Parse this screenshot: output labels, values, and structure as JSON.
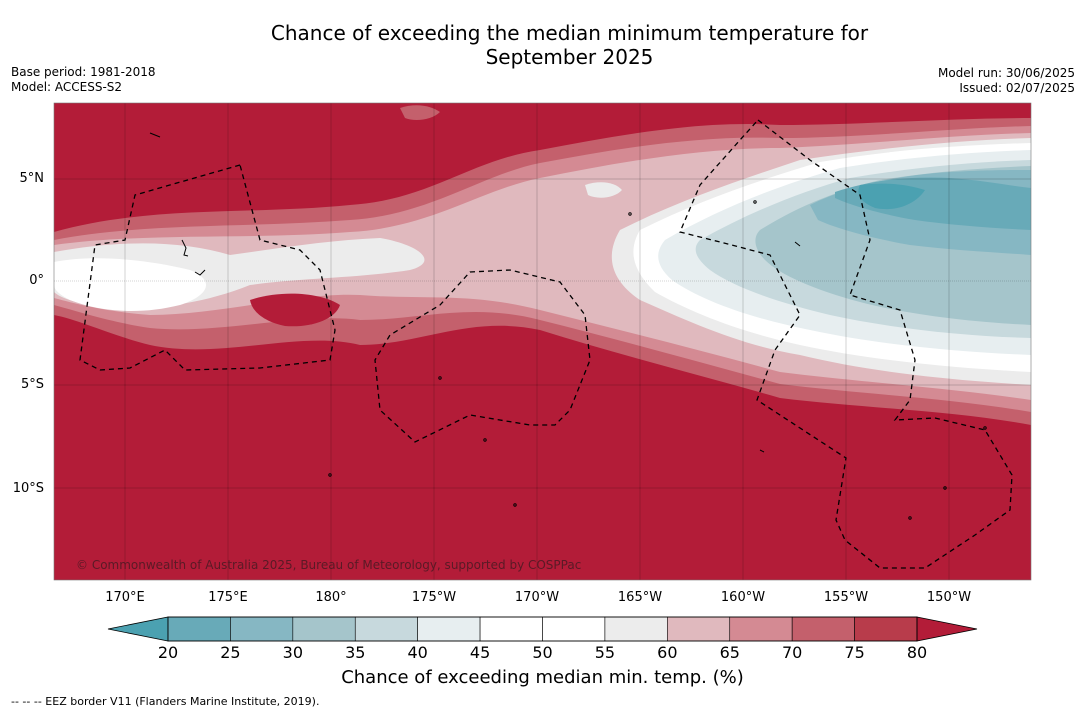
{
  "title": {
    "line1": "Chance of exceeding the median minimum temperature for",
    "line2": "September 2025"
  },
  "meta": {
    "base_period": "Base period: 1981-2018",
    "model": "Model: ACCESS-S2",
    "model_run": "Model run: 30/06/2025",
    "issued": "Issued: 02/07/2025"
  },
  "map": {
    "latitude_labels": [
      "5°N",
      "0°",
      "5°S",
      "10°S"
    ],
    "longitude_labels": [
      "170°E",
      "175°E",
      "180°",
      "175°W",
      "170°W",
      "165°W",
      "160°W",
      "155°W",
      "150°W"
    ],
    "copyright": "© Commonwealth of Australia 2025, Bureau of Meteorology, supported by COSPPac",
    "background_color": "#b31c38"
  },
  "colorbar": {
    "ticks": [
      "20",
      "25",
      "30",
      "35",
      "40",
      "45",
      "50",
      "55",
      "60",
      "65",
      "70",
      "75",
      "80"
    ],
    "colors": [
      "#4ba1b1",
      "#68aab8",
      "#86b7c3",
      "#a5c5cb",
      "#c7d9dd",
      "#e7eef0",
      "#ffffff",
      "#ffffff",
      "#ececec",
      "#e0b9be",
      "#d48a93",
      "#c4606c",
      "#b83c4b",
      "#b31c38"
    ],
    "label": "Chance of exceeding median min. temp. (%)"
  },
  "footnote": "--  --  -- EEZ border V11 (Flanders Marine Institute, 2019)."
}
